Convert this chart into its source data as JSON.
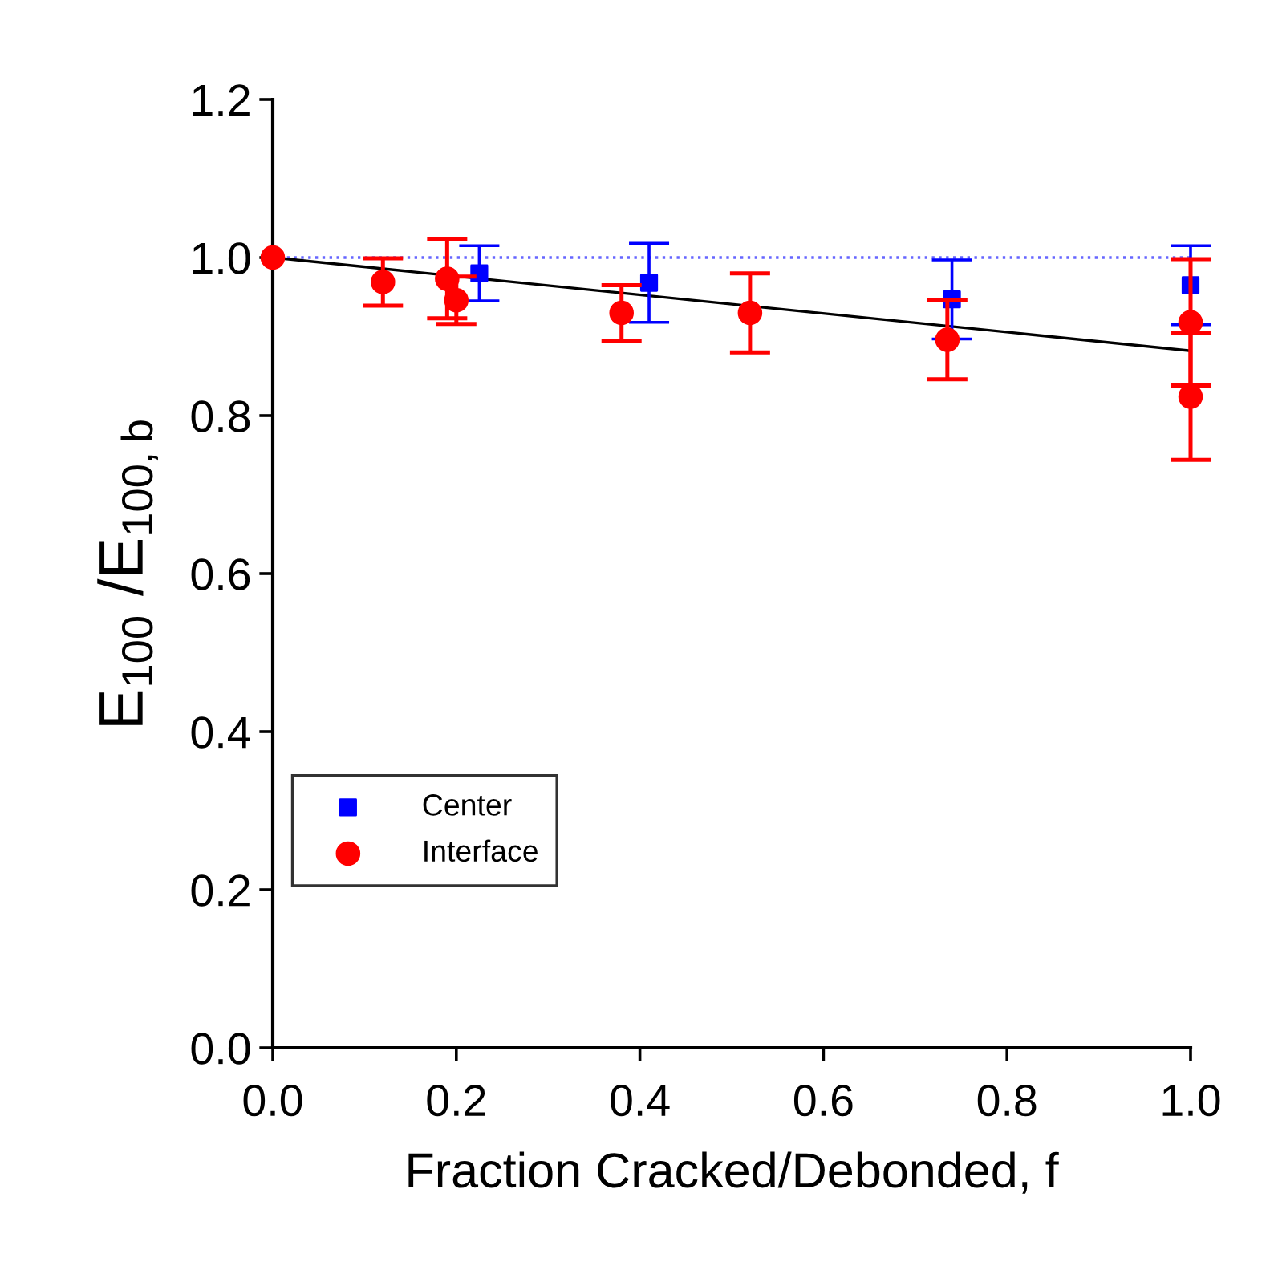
{
  "chart_data": {
    "type": "scatter",
    "xlabel": "Fraction Cracked/Debonded, f",
    "ylabel": "E$_{100}$ /E$_{100,b}$",
    "xlim": [
      0,
      1
    ],
    "ylim": [
      0,
      1.2
    ],
    "xticks": [
      {
        "value": 0,
        "label": "0.0"
      },
      {
        "value": 0.2,
        "label": "0.2"
      },
      {
        "value": 0.4,
        "label": "0.4"
      },
      {
        "value": 0.6,
        "label": "0.6"
      },
      {
        "value": 0.8,
        "label": "0.8"
      },
      {
        "value": 1,
        "label": "1.0"
      }
    ],
    "yticks": [
      {
        "value": 0,
        "label": "0.0"
      },
      {
        "value": 0.2,
        "label": "0.2"
      },
      {
        "value": 0.4,
        "label": "0.4"
      },
      {
        "value": 0.6,
        "label": "0.6"
      },
      {
        "value": 0.8,
        "label": "0.8"
      },
      {
        "value": 1,
        "label": "1.0"
      },
      {
        "value": 1.2,
        "label": "1.2"
      }
    ],
    "grid": false,
    "legend": "bottom left",
    "ref_lines": [
      {
        "axis": "y",
        "value": 1.0,
        "color": "#6666ff",
        "line_style": "dotted"
      }
    ],
    "series": [
      {
        "name": "Center",
        "marker": "square",
        "color": "#0000ff",
        "x": [
          0.225,
          0.41,
          0.74,
          1.0
        ],
        "values": [
          0.98,
          0.968,
          0.947,
          0.965
        ],
        "errors": [
          0.035,
          0.05,
          0.05,
          0.05
        ]
      },
      {
        "name": "Interface",
        "marker": "circle",
        "color": "#ff0000",
        "x": [
          0,
          0.12,
          0.19,
          0.2,
          0.38,
          0.52,
          0.735,
          1.0,
          1.0
        ],
        "values": [
          1.0,
          0.969,
          0.973,
          0.946,
          0.93,
          0.93,
          0.896,
          0.918,
          0.824
        ],
        "errors": [
          null,
          0.03,
          0.05,
          0.03,
          0.035,
          0.05,
          0.05,
          0.08,
          0.08
        ]
      },
      {
        "type": "line",
        "color": "#000000",
        "marker": "none",
        "line_style": "solid",
        "x": [
          0,
          1.0
        ],
        "values": [
          1.0,
          0.882
        ]
      }
    ]
  }
}
